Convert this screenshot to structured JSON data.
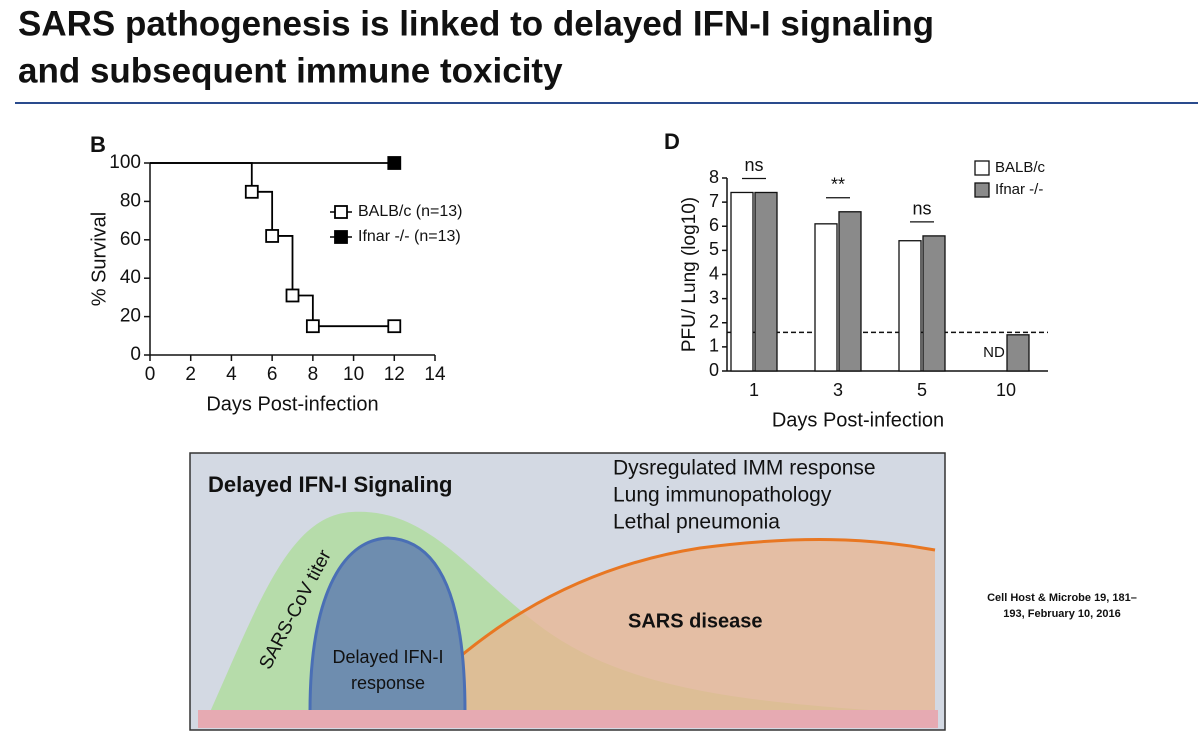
{
  "title": [
    "SARS pathogenesis is linked to delayed IFN-I signaling",
    "and subsequent immune toxicity"
  ],
  "chart_data": [
    {
      "type": "line",
      "step": true,
      "panel": "B",
      "x_label": "Days Post-infection",
      "y_label": "% Survival",
      "xlim": [
        0,
        14
      ],
      "xticks": [
        0,
        2,
        4,
        6,
        8,
        10,
        12,
        14
      ],
      "ylim": [
        0,
        100
      ],
      "yticks": [
        0,
        20,
        40,
        60,
        80,
        100
      ],
      "series": [
        {
          "name": "BALB/c (n=13)",
          "color": "#000000",
          "marker": "open-square",
          "x": [
            0,
            5,
            6,
            7,
            8,
            12
          ],
          "values": [
            100,
            85,
            62,
            31,
            15,
            15
          ]
        },
        {
          "name": "Ifnar -/- (n=13)",
          "color": "#000000",
          "marker": "filled-square",
          "x": [
            0,
            12
          ],
          "values": [
            100,
            100
          ]
        }
      ]
    },
    {
      "type": "bar",
      "panel": "D",
      "x_label": "Days Post-infection",
      "y_label": "PFU/ Lung (log10)",
      "categories": [
        "1",
        "3",
        "5",
        "10"
      ],
      "ylim": [
        0,
        8
      ],
      "yticks": [
        0,
        1,
        2,
        3,
        4,
        5,
        6,
        7,
        8
      ],
      "detection_limit": 1.6,
      "significance": [
        "ns",
        "**",
        "ns"
      ],
      "not_detected_label": "ND",
      "series": [
        {
          "name": "BALB/c",
          "color": "#ffffff",
          "values": [
            7.4,
            6.1,
            5.4,
            null
          ]
        },
        {
          "name": "Ifnar -/-",
          "color": "#8a8a8a",
          "values": [
            7.4,
            6.6,
            5.6,
            1.5
          ]
        }
      ]
    }
  ],
  "diagram": {
    "title": "Delayed IFN-I Signaling",
    "outcomes": [
      "Dysregulated IMM response",
      "Lung immunopathology",
      "Lethal pneumonia"
    ],
    "titer_label": "SARS-CoV titer",
    "ifn_label": [
      "Delayed IFN-I",
      "response"
    ],
    "disease_label": "SARS disease"
  },
  "citation": [
    "Cell Host & Microbe 19, 181–",
    "193, February 10, 2016"
  ]
}
